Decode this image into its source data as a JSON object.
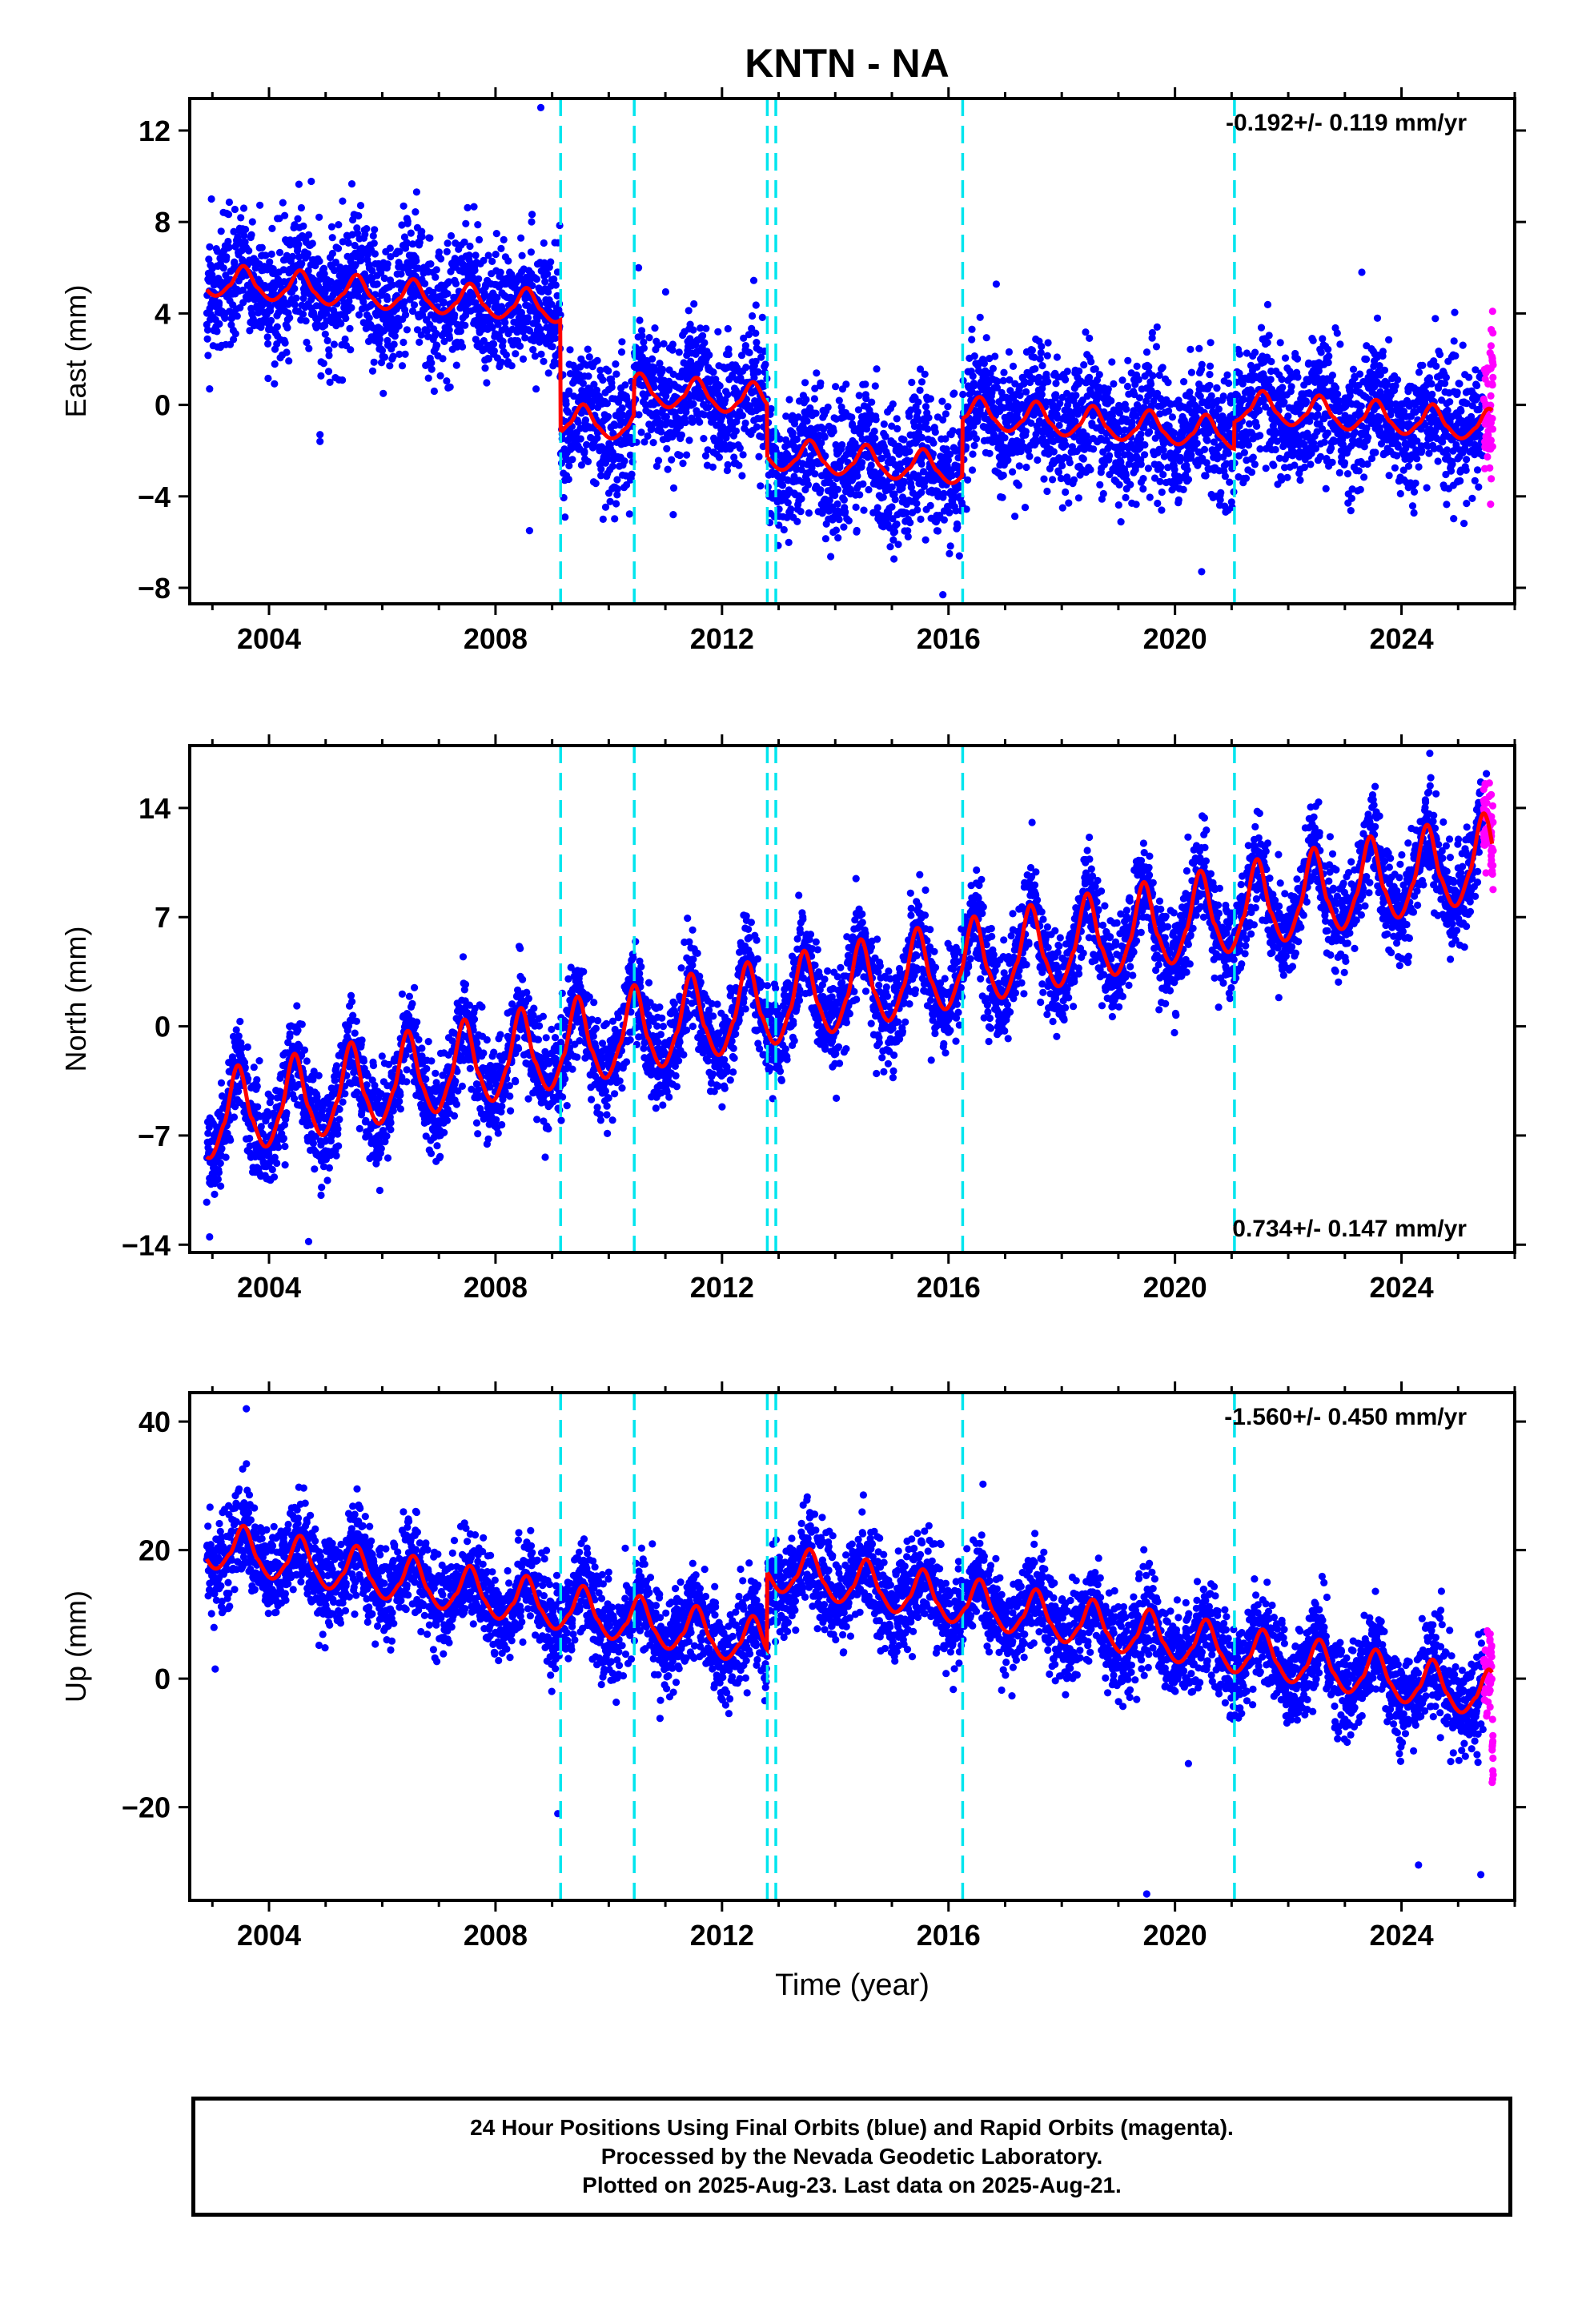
{
  "title": "KNTN - NA",
  "colors": {
    "final_orbits": "#0000ff",
    "rapid_orbits": "#ff00ff",
    "model_fit": "#ff0000",
    "step_markers": "#00e5ee",
    "frame": "#000000"
  },
  "chart_data": [
    {
      "type": "scatter",
      "name": "east-panel",
      "ylabel": "East (mm)",
      "xlabel": "",
      "rate_label": "-0.192+/- 0.119 mm/yr",
      "rate_position": "top-right",
      "xlim": [
        2002.6,
        2026.0
      ],
      "ylim": [
        -8.7,
        13.4
      ],
      "x_ticks": [
        2004,
        2008,
        2012,
        2016,
        2020,
        2024
      ],
      "y_ticks": [
        12,
        8,
        4,
        0,
        -4,
        -8
      ],
      "y_tick_labels": [
        "12",
        "8",
        "4",
        "0",
        "−4",
        "−8"
      ],
      "step_markers_year": [
        2009.15,
        2010.45,
        2012.8,
        2012.95,
        2016.25,
        2021.05
      ],
      "model": {
        "description_series": "model-fit",
        "segments": [
          {
            "start": 2002.9,
            "end": 2009.15,
            "offset": 5.3
          },
          {
            "start": 2009.15,
            "end": 2010.45,
            "offset": -0.8
          },
          {
            "start": 2010.45,
            "end": 2012.8,
            "offset": 0.5
          },
          {
            "start": 2012.8,
            "end": 2016.25,
            "offset": -2.3
          },
          {
            "start": 2016.25,
            "end": 2021.05,
            "offset": -0.5
          },
          {
            "start": 2021.05,
            "end": 2025.6,
            "offset": -0.2
          }
        ],
        "rate_mm_per_yr": -0.192,
        "annual_amplitude": 0.9,
        "annual_phase_peak": 0.55
      },
      "scatter": {
        "noise": 1.4,
        "start": 2002.9,
        "end": 2025.45,
        "rapid_start": 2025.45,
        "rapid_end": 2025.62
      },
      "outliers": [
        [
          2008.8,
          13.0
        ],
        [
          2008.6,
          -5.5
        ],
        [
          2004.9,
          -1.3
        ],
        [
          2004.9,
          -1.6
        ],
        [
          2009.9,
          -5.0
        ],
        [
          2002.95,
          0.7
        ],
        [
          2014.3,
          -0.9
        ],
        [
          2015.9,
          -8.3
        ],
        [
          2023.3,
          5.8
        ]
      ]
    },
    {
      "type": "scatter",
      "name": "north-panel",
      "ylabel": "North (mm)",
      "xlabel": "",
      "rate_label": "0.734+/- 0.147 mm/yr",
      "rate_position": "bottom-right",
      "xlim": [
        2002.6,
        2026.0
      ],
      "ylim": [
        -14.5,
        18.0
      ],
      "x_ticks": [
        2004,
        2008,
        2012,
        2016,
        2020,
        2024
      ],
      "y_ticks": [
        14,
        7,
        0,
        -7,
        -14
      ],
      "y_tick_labels": [
        "14",
        "7",
        "0",
        "−7",
        "−14"
      ],
      "step_markers_year": [
        2009.15,
        2010.45,
        2012.8,
        2012.95,
        2016.25,
        2021.05
      ],
      "model": {
        "segments": [
          {
            "start": 2002.9,
            "end": 2025.6,
            "offset": -6.5
          }
        ],
        "rate_mm_per_yr": 0.734,
        "annual_amplitude": 3.6,
        "annual_phase_peak": 0.45
      },
      "scatter": {
        "noise": 1.5,
        "start": 2002.9,
        "end": 2025.45,
        "rapid_start": 2025.45,
        "rapid_end": 2025.62
      },
      "outliers": [
        [
          2002.95,
          -13.5
        ],
        [
          2004.7,
          -13.8
        ],
        [
          2024.5,
          17.5
        ],
        [
          2025.5,
          16.2
        ]
      ]
    },
    {
      "type": "scatter",
      "name": "up-panel",
      "ylabel": "Up (mm)",
      "xlabel": "Time (year)",
      "rate_label": "-1.560+/- 0.450 mm/yr",
      "rate_position": "top-right",
      "xlim": [
        2002.6,
        2026.0
      ],
      "ylim": [
        -34.5,
        44.5
      ],
      "x_ticks": [
        2004,
        2008,
        2012,
        2016,
        2020,
        2024
      ],
      "y_ticks": [
        40,
        20,
        0,
        -20
      ],
      "y_tick_labels": [
        "40",
        "20",
        "0",
        "−20"
      ],
      "step_markers_year": [
        2009.15,
        2010.45,
        2012.8,
        2012.95,
        2016.25,
        2021.05
      ],
      "model": {
        "segments": [
          {
            "start": 2002.9,
            "end": 2012.8,
            "offset": 20.0
          },
          {
            "start": 2012.8,
            "end": 2025.6,
            "offset": 16.5
          }
        ],
        "rate_mm_per_yr": -1.56,
        "annual_amplitude": 4.8,
        "annual_phase_peak": 0.55
      },
      "scatter": {
        "noise": 3.6,
        "start": 2002.9,
        "end": 2025.45,
        "rapid_start": 2025.45,
        "rapid_end": 2025.62
      },
      "outliers": [
        [
          2003.6,
          42.0
        ],
        [
          2003.05,
          1.5
        ],
        [
          2009.1,
          -21.0
        ],
        [
          2019.5,
          -33.5
        ],
        [
          2024.3,
          -29.0
        ],
        [
          2025.4,
          -30.5
        ]
      ]
    }
  ],
  "footer": {
    "line1": "24 Hour Positions Using Final Orbits (blue) and Rapid Orbits (magenta).",
    "line2": "Processed by the Nevada Geodetic Laboratory.",
    "line3": "Plotted on 2025-Aug-23. Last data on 2025-Aug-21."
  }
}
